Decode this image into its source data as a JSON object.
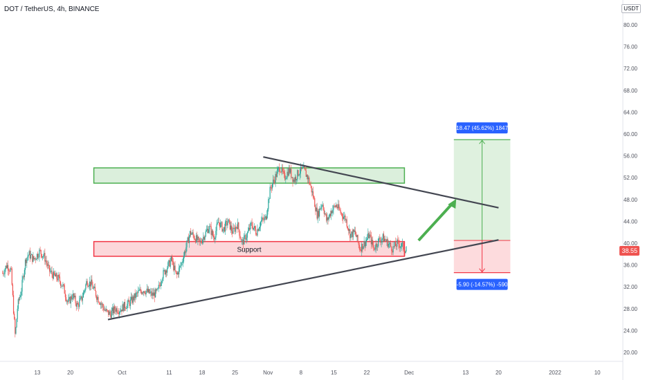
{
  "chart_data": {
    "type": "candlestick",
    "title": "DOT / TetherUS, 4h, BINANCE",
    "currency_label": "USDT",
    "last_price": "38.55",
    "y_ticks": [
      "80.00",
      "76.00",
      "72.00",
      "68.00",
      "64.00",
      "60.00",
      "56.00",
      "52.00",
      "48.00",
      "44.00",
      "40.00",
      "36.00",
      "32.00",
      "28.00",
      "24.00",
      "20.00"
    ],
    "x_ticks": [
      {
        "label": "13",
        "day": 0
      },
      {
        "label": "20",
        "day": 7
      },
      {
        "label": "Oct",
        "day": 18
      },
      {
        "label": "11",
        "day": 28
      },
      {
        "label": "18",
        "day": 35
      },
      {
        "label": "25",
        "day": 42
      },
      {
        "label": "Nov",
        "day": 49
      },
      {
        "label": "8",
        "day": 56
      },
      {
        "label": "15",
        "day": 63
      },
      {
        "label": "22",
        "day": 70
      },
      {
        "label": "Dec",
        "day": 79
      },
      {
        "label": "13",
        "day": 91
      },
      {
        "label": "20",
        "day": 98
      },
      {
        "label": "2022",
        "day": 110
      },
      {
        "label": "10",
        "day": 119
      }
    ],
    "price_path": [
      [
        -7.4,
        34.5
      ],
      [
        -6.5,
        36.0
      ],
      [
        -5.6,
        35.0
      ],
      [
        -4.7,
        22.8
      ],
      [
        -4.2,
        28.5
      ],
      [
        -3.4,
        31.5
      ],
      [
        -2.5,
        37.0
      ],
      [
        -1.8,
        38.0
      ],
      [
        -0.8,
        37.0
      ],
      [
        0.5,
        38.5
      ],
      [
        1.5,
        37.5
      ],
      [
        2.5,
        35.0
      ],
      [
        3.5,
        34.0
      ],
      [
        4.5,
        33.5
      ],
      [
        5.5,
        32.0
      ],
      [
        6.5,
        29.0
      ],
      [
        7.5,
        30.5
      ],
      [
        8.5,
        28.5
      ],
      [
        9.5,
        30.0
      ],
      [
        10.5,
        33.0
      ],
      [
        11.5,
        32.5
      ],
      [
        12.5,
        30.5
      ],
      [
        13.5,
        29.0
      ],
      [
        14.5,
        27.5
      ],
      [
        15.5,
        27.0
      ],
      [
        16.5,
        28.0
      ],
      [
        17.5,
        27.8
      ],
      [
        18.5,
        28.5
      ],
      [
        19.5,
        29.0
      ],
      [
        20.5,
        30.0
      ],
      [
        21.5,
        31.0
      ],
      [
        22.5,
        31.5
      ],
      [
        23.5,
        31.0
      ],
      [
        24.5,
        30.5
      ],
      [
        25.5,
        31.0
      ],
      [
        26.5,
        34.0
      ],
      [
        27.5,
        35.5
      ],
      [
        28.5,
        37.0
      ],
      [
        29.5,
        34.0
      ],
      [
        30.5,
        36.0
      ],
      [
        31.5,
        39.0
      ],
      [
        32.5,
        42.0
      ],
      [
        33.5,
        41.0
      ],
      [
        34.5,
        40.0
      ],
      [
        35.5,
        41.5
      ],
      [
        36.5,
        43.0
      ],
      [
        37.5,
        41.0
      ],
      [
        38.5,
        44.0
      ],
      [
        39.5,
        42.5
      ],
      [
        40.5,
        44.0
      ],
      [
        41.5,
        42.0
      ],
      [
        42.5,
        43.5
      ],
      [
        43.5,
        40.0
      ],
      [
        44.5,
        41.5
      ],
      [
        45.5,
        43.5
      ],
      [
        46.5,
        42.0
      ],
      [
        47.5,
        44.0
      ],
      [
        48.5,
        44.5
      ],
      [
        49.5,
        50.0
      ],
      [
        50.5,
        52.0
      ],
      [
        51.5,
        54.0
      ],
      [
        52.5,
        52.0
      ],
      [
        53.5,
        53.5
      ],
      [
        54.5,
        51.5
      ],
      [
        55.5,
        53.0
      ],
      [
        56.5,
        53.5
      ],
      [
        57.5,
        52.0
      ],
      [
        58.5,
        49.0
      ],
      [
        59.5,
        45.0
      ],
      [
        60.5,
        47.5
      ],
      [
        61.5,
        44.0
      ],
      [
        62.5,
        46.0
      ],
      [
        63.5,
        47.0
      ],
      [
        64.5,
        45.5
      ],
      [
        65.5,
        44.5
      ],
      [
        66.5,
        41.5
      ],
      [
        67.5,
        42.0
      ],
      [
        68.5,
        39.0
      ],
      [
        69.5,
        40.0
      ],
      [
        70.5,
        41.5
      ],
      [
        71.5,
        39.0
      ],
      [
        72.5,
        40.5
      ],
      [
        73.5,
        41.0
      ],
      [
        74.5,
        40.0
      ],
      [
        75.5,
        39.0
      ],
      [
        76.5,
        40.0
      ],
      [
        77.5,
        39.5
      ],
      [
        78.5,
        38.5
      ]
    ],
    "zones": [
      {
        "name": "resistance",
        "label": "",
        "x_from": 12,
        "x_to": 78,
        "y_from": 51.0,
        "y_to": 53.8,
        "color": "#4caf50"
      },
      {
        "name": "support",
        "label": "Support",
        "x_from": 12,
        "x_to": 78,
        "y_from": 37.6,
        "y_to": 40.3,
        "color": "#f23645"
      }
    ],
    "trendlines": [
      {
        "from": [
          15.0,
          26.0
        ],
        "to": [
          98.0,
          40.6
        ]
      },
      {
        "from": [
          48.0,
          55.8
        ],
        "to": [
          98.0,
          46.5
        ]
      }
    ],
    "arrow": {
      "from": [
        81.0,
        40.5
      ],
      "to": [
        89.0,
        48.1
      ],
      "color": "#4caf50"
    },
    "position": {
      "x_from": 88.5,
      "x_to": 100.5,
      "entry": 40.5,
      "target": 58.97,
      "stop": 34.6,
      "target_label": "18.47 (45.62%) 1847",
      "stop_label": "-5.90 (-14.57%) -590"
    }
  }
}
